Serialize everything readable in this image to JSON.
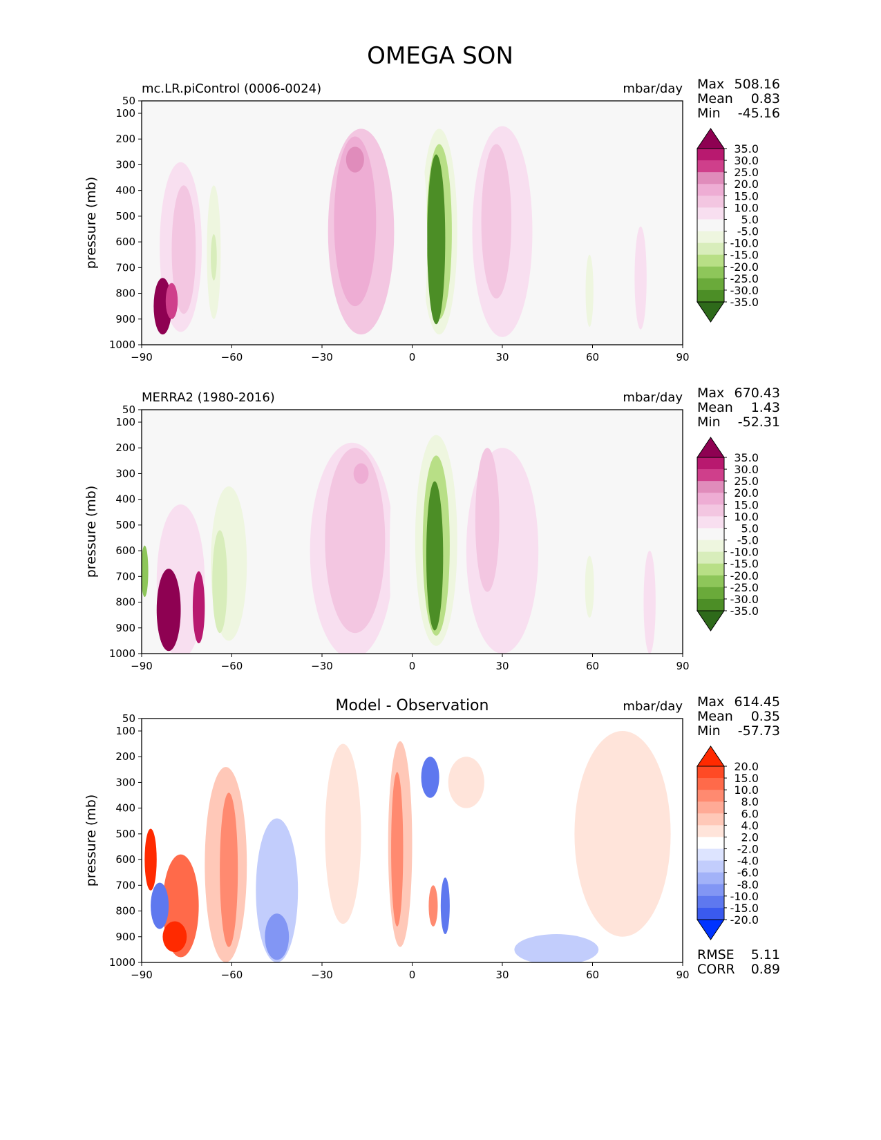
{
  "figure": {
    "title": "OMEGA SON"
  },
  "chart_data": [
    {
      "type": "contour",
      "panel": "model",
      "title": "mc.LR.piControl (0006-0024)",
      "units": "mbar/day",
      "ylabel": "pressure (mb)",
      "xlabel": "",
      "xlim": [
        -90,
        90
      ],
      "ylim": [
        1000,
        50
      ],
      "xticks": [
        -90,
        -60,
        -30,
        0,
        30,
        60,
        90
      ],
      "yticks": [
        50,
        100,
        200,
        300,
        400,
        500,
        600,
        700,
        800,
        900,
        1000
      ],
      "stats": {
        "max_label": "Max",
        "max": "508.16",
        "mean_label": "Mean",
        "mean": "0.83",
        "min_label": "Min",
        "min": "-45.16"
      },
      "colorbar": {
        "levels": [
          "35.0",
          "30.0",
          "25.0",
          "20.0",
          "15.0",
          "10.0",
          "5.0",
          "-5.0",
          "-10.0",
          "-15.0",
          "-20.0",
          "-25.0",
          "-30.0",
          "-35.0"
        ],
        "colors": [
          "#8e0152",
          "#b8196f",
          "#cf3f8b",
          "#e08cbb",
          "#eeadd4",
          "#f3c6e1",
          "#f8dff0",
          "#f7f7f7",
          "#eef6df",
          "#d8edbb",
          "#b8df86",
          "#8ec65a",
          "#6aaa3a",
          "#4c8e26",
          "#2e6a1a"
        ]
      },
      "features": [
        {
          "shape": "ellipse",
          "lat": -17,
          "p": 560,
          "dlat": 11,
          "dp": 400,
          "value": 10
        },
        {
          "shape": "ellipse",
          "lat": -19,
          "p": 520,
          "dlat": 7,
          "dp": 330,
          "value": 15
        },
        {
          "shape": "ellipse",
          "lat": -19,
          "p": 280,
          "dlat": 3,
          "dp": 50,
          "value": 20
        },
        {
          "shape": "ellipse",
          "lat": 9,
          "p": 560,
          "dlat": 6,
          "dp": 400,
          "value": -10
        },
        {
          "shape": "ellipse",
          "lat": 9,
          "p": 560,
          "dlat": 4.2,
          "dp": 340,
          "value": -20
        },
        {
          "shape": "ellipse",
          "lat": 8,
          "p": 590,
          "dlat": 3,
          "dp": 330,
          "value": -35
        },
        {
          "shape": "ellipse",
          "lat": 2,
          "p": 600,
          "dlat": 3,
          "dp": 380,
          "value": -5
        },
        {
          "shape": "ellipse",
          "lat": 30,
          "p": 560,
          "dlat": 10,
          "dp": 410,
          "value": 5
        },
        {
          "shape": "ellipse",
          "lat": 28,
          "p": 520,
          "dlat": 5,
          "dp": 300,
          "value": 10
        },
        {
          "shape": "ellipse",
          "lat": -62,
          "p": 600,
          "dlat": 6,
          "dp": 360,
          "value": -5
        },
        {
          "shape": "ellipse",
          "lat": -50,
          "p": 640,
          "dlat": 9,
          "dp": 320,
          "value": -5
        },
        {
          "shape": "ellipse",
          "lat": -66,
          "p": 640,
          "dlat": 2.3,
          "dp": 260,
          "value": -10
        },
        {
          "shape": "ellipse",
          "lat": -66,
          "p": 660,
          "dlat": 1,
          "dp": 90,
          "value": -15
        },
        {
          "shape": "ellipse",
          "lat": 58,
          "p": 680,
          "dlat": 6,
          "dp": 300,
          "value": -5
        },
        {
          "shape": "ellipse",
          "lat": 59,
          "p": 790,
          "dlat": 1.3,
          "dp": 140,
          "value": -10
        },
        {
          "shape": "ellipse",
          "lat": -77,
          "p": 620,
          "dlat": 7,
          "dp": 330,
          "value": 5
        },
        {
          "shape": "ellipse",
          "lat": -76,
          "p": 630,
          "dlat": 4,
          "dp": 250,
          "value": 10
        },
        {
          "shape": "ellipse",
          "lat": -83,
          "p": 850,
          "dlat": 3,
          "dp": 110,
          "value": 35
        },
        {
          "shape": "ellipse",
          "lat": -80,
          "p": 830,
          "dlat": 2,
          "dp": 70,
          "value": 25
        },
        {
          "shape": "ellipse",
          "lat": 76,
          "p": 740,
          "dlat": 2,
          "dp": 200,
          "value": 5
        }
      ]
    },
    {
      "type": "contour",
      "panel": "observation",
      "title": "MERRA2 (1980-2016)",
      "units": "mbar/day",
      "ylabel": "pressure (mb)",
      "xlabel": "",
      "xlim": [
        -90,
        90
      ],
      "ylim": [
        1000,
        50
      ],
      "xticks": [
        -90,
        -60,
        -30,
        0,
        30,
        60,
        90
      ],
      "yticks": [
        50,
        100,
        200,
        300,
        400,
        500,
        600,
        700,
        800,
        900,
        1000
      ],
      "stats": {
        "max_label": "Max",
        "max": "670.43",
        "mean_label": "Mean",
        "mean": "1.43",
        "min_label": "Min",
        "min": "-52.31"
      },
      "colorbar": {
        "levels": [
          "35.0",
          "30.0",
          "25.0",
          "20.0",
          "15.0",
          "10.0",
          "5.0",
          "-5.0",
          "-10.0",
          "-15.0",
          "-20.0",
          "-25.0",
          "-30.0",
          "-35.0"
        ],
        "colors": [
          "#8e0152",
          "#b8196f",
          "#cf3f8b",
          "#e08cbb",
          "#eeadd4",
          "#f3c6e1",
          "#f8dff0",
          "#f7f7f7",
          "#eef6df",
          "#d8edbb",
          "#b8df86",
          "#8ec65a",
          "#6aaa3a",
          "#4c8e26",
          "#2e6a1a"
        ]
      },
      "features": [
        {
          "shape": "ellipse",
          "lat": -20,
          "p": 600,
          "dlat": 14,
          "dp": 420,
          "value": 5
        },
        {
          "shape": "ellipse",
          "lat": -19,
          "p": 560,
          "dlat": 10,
          "dp": 360,
          "value": 10
        },
        {
          "shape": "ellipse",
          "lat": -17,
          "p": 300,
          "dlat": 2.5,
          "dp": 40,
          "value": 15
        },
        {
          "shape": "ellipse",
          "lat": 8,
          "p": 560,
          "dlat": 7,
          "dp": 410,
          "value": -10
        },
        {
          "shape": "ellipse",
          "lat": 8,
          "p": 580,
          "dlat": 4.5,
          "dp": 350,
          "value": -20
        },
        {
          "shape": "ellipse",
          "lat": 7.5,
          "p": 620,
          "dlat": 2.8,
          "dp": 290,
          "value": -35
        },
        {
          "shape": "ellipse",
          "lat": -5,
          "p": 620,
          "dlat": 2.5,
          "dp": 400,
          "value": -5
        },
        {
          "shape": "ellipse",
          "lat": 30,
          "p": 600,
          "dlat": 12,
          "dp": 400,
          "value": 5
        },
        {
          "shape": "ellipse",
          "lat": 25,
          "p": 480,
          "dlat": 4,
          "dp": 280,
          "value": 10
        },
        {
          "shape": "ellipse",
          "lat": -59,
          "p": 610,
          "dlat": 8,
          "dp": 370,
          "value": -5
        },
        {
          "shape": "ellipse",
          "lat": -61,
          "p": 650,
          "dlat": 6,
          "dp": 300,
          "value": -10
        },
        {
          "shape": "ellipse",
          "lat": -64,
          "p": 720,
          "dlat": 2.5,
          "dp": 200,
          "value": -15
        },
        {
          "shape": "ellipse",
          "lat": 58,
          "p": 680,
          "dlat": 6,
          "dp": 300,
          "value": -5
        },
        {
          "shape": "ellipse",
          "lat": 59,
          "p": 740,
          "dlat": 1.5,
          "dp": 120,
          "value": -10
        },
        {
          "shape": "ellipse",
          "lat": -77,
          "p": 720,
          "dlat": 8,
          "dp": 300,
          "value": 5
        },
        {
          "shape": "ellipse",
          "lat": -81,
          "p": 830,
          "dlat": 4,
          "dp": 160,
          "value": 35
        },
        {
          "shape": "ellipse",
          "lat": -71,
          "p": 820,
          "dlat": 2,
          "dp": 140,
          "value": 30
        },
        {
          "shape": "ellipse",
          "lat": -89,
          "p": 680,
          "dlat": 1.2,
          "dp": 100,
          "value": -25
        },
        {
          "shape": "ellipse",
          "lat": 79,
          "p": 800,
          "dlat": 2,
          "dp": 200,
          "value": 5
        }
      ]
    },
    {
      "type": "contour",
      "panel": "difference",
      "title": "Model - Observation",
      "units": "mbar/day",
      "ylabel": "pressure (mb)",
      "xlabel": "",
      "xlim": [
        -90,
        90
      ],
      "ylim": [
        1000,
        50
      ],
      "xticks": [
        -90,
        -60,
        -30,
        0,
        30,
        60,
        90
      ],
      "yticks": [
        50,
        100,
        200,
        300,
        400,
        500,
        600,
        700,
        800,
        900,
        1000
      ],
      "stats": {
        "max_label": "Max",
        "max": "614.45",
        "mean_label": "Mean",
        "mean": "0.35",
        "min_label": "Min",
        "min": "-57.73"
      },
      "metrics": {
        "rmse_label": "RMSE",
        "rmse": "5.11",
        "corr_label": "CORR",
        "corr": "0.89"
      },
      "colorbar": {
        "levels": [
          "20.0",
          "15.0",
          "10.0",
          "8.0",
          "6.0",
          "4.0",
          "2.0",
          "-2.0",
          "-4.0",
          "-6.0",
          "-8.0",
          "-10.0",
          "-15.0",
          "-20.0"
        ],
        "colors": [
          "#ff2a00",
          "#ff4a25",
          "#ff6a4a",
          "#ff8a70",
          "#ffaa96",
          "#ffc8b8",
          "#ffe4da",
          "#ffffff",
          "#dde4ff",
          "#c2cdfc",
          "#a2b2f8",
          "#8296f4",
          "#5e78ef",
          "#3a5aef",
          "#0033ff"
        ]
      },
      "features": [
        {
          "shape": "ellipse",
          "lat": -62,
          "p": 620,
          "dlat": 7,
          "dp": 380,
          "value": 4
        },
        {
          "shape": "ellipse",
          "lat": -61,
          "p": 640,
          "dlat": 3,
          "dp": 300,
          "value": 8
        },
        {
          "shape": "ellipse",
          "lat": -45,
          "p": 650,
          "dlat": 10,
          "dp": 360,
          "value": -2
        },
        {
          "shape": "ellipse",
          "lat": -45,
          "p": 720,
          "dlat": 7,
          "dp": 280,
          "value": -6
        },
        {
          "shape": "ellipse",
          "lat": -45,
          "p": 900,
          "dlat": 4,
          "dp": 90,
          "value": -10
        },
        {
          "shape": "ellipse",
          "lat": -23,
          "p": 500,
          "dlat": 6,
          "dp": 350,
          "value": 2
        },
        {
          "shape": "ellipse",
          "lat": -4,
          "p": 540,
          "dlat": 4,
          "dp": 400,
          "value": 4
        },
        {
          "shape": "ellipse",
          "lat": -5,
          "p": 560,
          "dlat": 2,
          "dp": 300,
          "value": 8
        },
        {
          "shape": "ellipse",
          "lat": 6,
          "p": 560,
          "dlat": 6,
          "dp": 420,
          "value": -2
        },
        {
          "shape": "ellipse",
          "lat": 6,
          "p": 280,
          "dlat": 3,
          "dp": 80,
          "value": -15
        },
        {
          "shape": "ellipse",
          "lat": 11,
          "p": 780,
          "dlat": 1.5,
          "dp": 110,
          "value": -15
        },
        {
          "shape": "ellipse",
          "lat": 7,
          "p": 780,
          "dlat": 1.5,
          "dp": 80,
          "value": 8
        },
        {
          "shape": "ellipse",
          "lat": 18,
          "p": 300,
          "dlat": 6,
          "dp": 100,
          "value": 2
        },
        {
          "shape": "ellipse",
          "lat": 48,
          "p": 860,
          "dlat": 10,
          "dp": 160,
          "value": -2
        },
        {
          "shape": "ellipse",
          "lat": 48,
          "p": 950,
          "dlat": 14,
          "dp": 60,
          "value": -6
        },
        {
          "shape": "ellipse",
          "lat": 70,
          "p": 500,
          "dlat": 16,
          "dp": 400,
          "value": 2
        },
        {
          "shape": "ellipse",
          "lat": -77,
          "p": 780,
          "dlat": 6,
          "dp": 200,
          "value": 10
        },
        {
          "shape": "ellipse",
          "lat": -84,
          "p": 780,
          "dlat": 3,
          "dp": 90,
          "value": -15
        },
        {
          "shape": "ellipse",
          "lat": -87,
          "p": 600,
          "dlat": 2,
          "dp": 120,
          "value": 20
        },
        {
          "shape": "ellipse",
          "lat": -79,
          "p": 900,
          "dlat": 4,
          "dp": 60,
          "value": 20
        }
      ]
    }
  ]
}
